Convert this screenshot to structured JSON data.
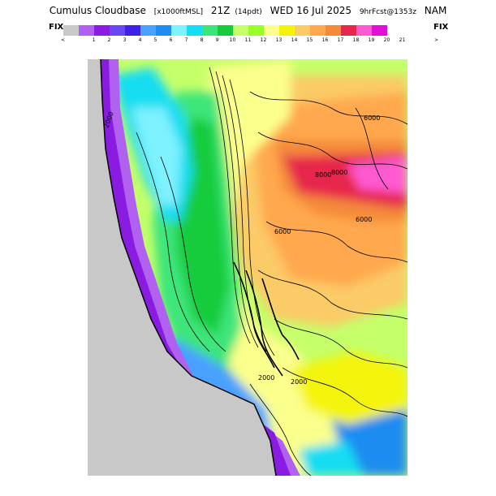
{
  "header": {
    "product": "Cumulus Cloudbase",
    "units": "[x1000ftMSL]",
    "valid": "21Z",
    "local_time": "(14pdt)",
    "date": "WED 16 Jul 2025",
    "forecast": "9hrFcst@1353z",
    "model": "NAM"
  },
  "legend": {
    "left_label": "FIX",
    "right_label": "FIX",
    "low_marker": "<",
    "high_marker": ">",
    "ticks": [
      "1",
      "2",
      "3",
      "4",
      "5",
      "6",
      "7",
      "8",
      "9",
      "10",
      "11",
      "12",
      "13",
      "14",
      "15",
      "16",
      "17",
      "18",
      "19",
      "20",
      "21"
    ],
    "colors": [
      "#c8c8c8",
      "#b061f0",
      "#8a1be0",
      "#6a46f0",
      "#3f20e6",
      "#4aa0ff",
      "#1f8cf0",
      "#7ff2ff",
      "#16ddf2",
      "#3ce57a",
      "#16cc3c",
      "#c5ff6a",
      "#99ff28",
      "#fbff8c",
      "#f4f40a",
      "#fbcb68",
      "#ffa84d",
      "#f48a3a",
      "#e6274c",
      "#ff5ad2",
      "#e00fd1"
    ]
  },
  "map": {
    "contour_labels": [
      "8000",
      "8000",
      "6000",
      "6000",
      "6000",
      "2000",
      "2000",
      "2000"
    ]
  }
}
